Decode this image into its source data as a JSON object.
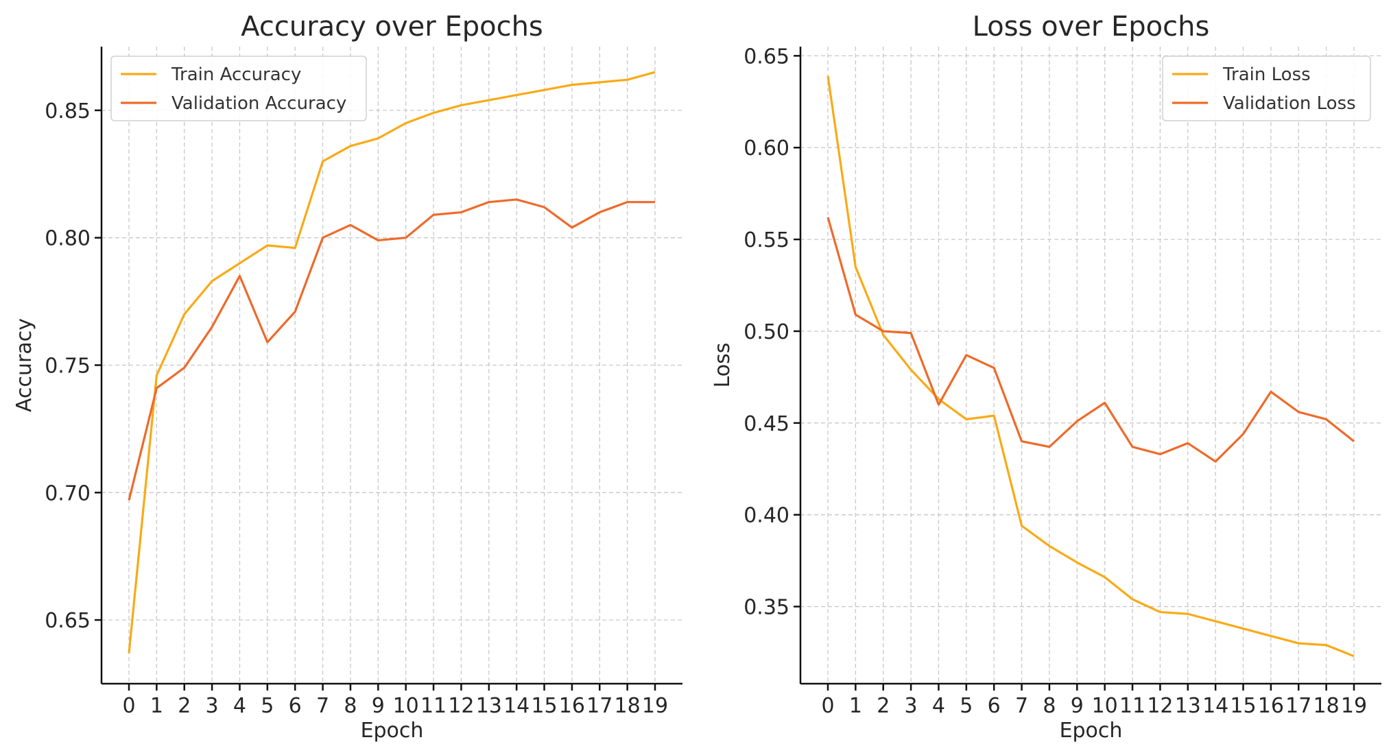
{
  "chart_data": [
    {
      "type": "line",
      "title": "Accuracy over Epochs",
      "xlabel": "Epoch",
      "ylabel": "Accuracy",
      "x": [
        0,
        1,
        2,
        3,
        4,
        5,
        6,
        7,
        8,
        9,
        10,
        11,
        12,
        13,
        14,
        15,
        16,
        17,
        18,
        19
      ],
      "ylim": [
        0.625,
        0.875
      ],
      "yticks": [
        "0.65",
        "0.70",
        "0.75",
        "0.80",
        "0.85"
      ],
      "grid": true,
      "legend_position": "top-left",
      "series": [
        {
          "name": "Train Accuracy",
          "color": "#F9AA17",
          "values": [
            0.637,
            0.746,
            0.77,
            0.783,
            0.79,
            0.797,
            0.796,
            0.83,
            0.836,
            0.839,
            0.845,
            0.849,
            0.852,
            0.854,
            0.856,
            0.858,
            0.86,
            0.861,
            0.862,
            0.865
          ]
        },
        {
          "name": "Validation Accuracy",
          "color": "#EE6A2A",
          "values": [
            0.697,
            0.741,
            0.749,
            0.765,
            0.785,
            0.759,
            0.771,
            0.8,
            0.805,
            0.799,
            0.8,
            0.809,
            0.81,
            0.814,
            0.815,
            0.812,
            0.804,
            0.81,
            0.814,
            0.814
          ]
        }
      ]
    },
    {
      "type": "line",
      "title": "Loss over Epochs",
      "xlabel": "Epoch",
      "ylabel": "Loss",
      "x": [
        0,
        1,
        2,
        3,
        4,
        5,
        6,
        7,
        8,
        9,
        10,
        11,
        12,
        13,
        14,
        15,
        16,
        17,
        18,
        19
      ],
      "ylim": [
        0.308,
        0.655
      ],
      "yticks": [
        "0.35",
        "0.40",
        "0.45",
        "0.50",
        "0.55",
        "0.60",
        "0.65"
      ],
      "grid": true,
      "legend_position": "top-right",
      "series": [
        {
          "name": "Train Loss",
          "color": "#F9AA17",
          "values": [
            0.639,
            0.535,
            0.498,
            0.479,
            0.463,
            0.452,
            0.454,
            0.394,
            0.383,
            0.374,
            0.366,
            0.354,
            0.347,
            0.346,
            0.342,
            0.338,
            0.334,
            0.33,
            0.329,
            0.323
          ]
        },
        {
          "name": "Validation Loss",
          "color": "#EE6A2A",
          "values": [
            0.562,
            0.509,
            0.5,
            0.499,
            0.46,
            0.487,
            0.48,
            0.44,
            0.437,
            0.451,
            0.461,
            0.437,
            0.433,
            0.439,
            0.429,
            0.444,
            0.467,
            0.456,
            0.452,
            0.44
          ]
        }
      ]
    }
  ]
}
